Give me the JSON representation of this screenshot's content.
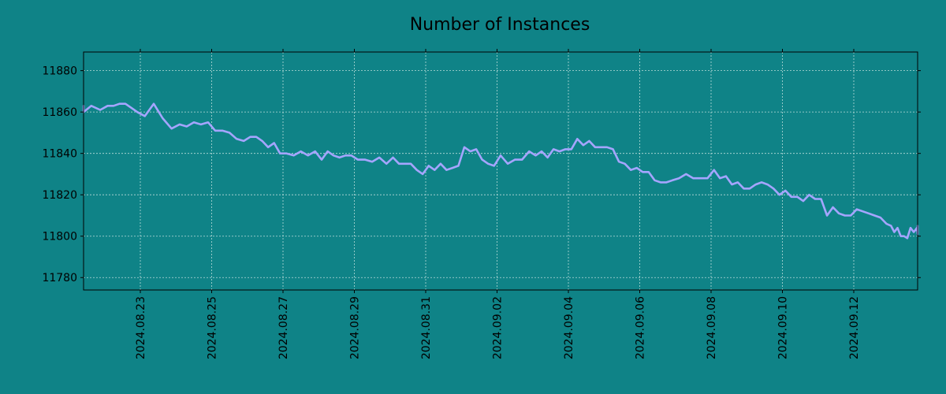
{
  "chart_data": {
    "type": "line",
    "title": "Number of Instances",
    "xlabel": "",
    "ylabel": "",
    "x_range": [
      "2024.08.21",
      "2024.09.13"
    ],
    "ylim": [
      11774,
      11889
    ],
    "y_ticks": [
      11780,
      11800,
      11820,
      11840,
      11860,
      11880
    ],
    "x_ticks": [
      "2024.08.23",
      "2024.08.25",
      "2024.08.27",
      "2024.08.29",
      "2024.08.31",
      "2024.09.02",
      "2024.09.04",
      "2024.09.06",
      "2024.09.08",
      "2024.09.10",
      "2024.09.12"
    ],
    "grid": true,
    "series": [
      {
        "color": "#a5a5ff",
        "points": [
          [
            "2024.08.21",
            11863
          ],
          [
            "2024.08.21",
            11860
          ],
          [
            "2024.08.21",
            11863
          ],
          [
            "2024.08.21",
            11861
          ],
          [
            "2024.08.22",
            11863
          ],
          [
            "2024.08.22",
            11863
          ],
          [
            "2024.08.22",
            11864
          ],
          [
            "2024.08.22",
            11864
          ],
          [
            "2024.08.22",
            11862
          ],
          [
            "2024.08.22",
            11860
          ],
          [
            "2024.08.23",
            11858
          ],
          [
            "2024.08.23",
            11864
          ],
          [
            "2024.08.23",
            11857
          ],
          [
            "2024.08.23",
            11852
          ],
          [
            "2024.08.24",
            11854
          ],
          [
            "2024.08.24",
            11853
          ],
          [
            "2024.08.24",
            11855
          ],
          [
            "2024.08.24",
            11854
          ],
          [
            "2024.08.24",
            11855
          ],
          [
            "2024.08.25",
            11851
          ],
          [
            "2024.08.25",
            11851
          ],
          [
            "2024.08.25",
            11850
          ],
          [
            "2024.08.25",
            11847
          ],
          [
            "2024.08.25",
            11846
          ],
          [
            "2024.08.26",
            11848
          ],
          [
            "2024.08.26",
            11848
          ],
          [
            "2024.08.26",
            11846
          ],
          [
            "2024.08.26",
            11843
          ],
          [
            "2024.08.26",
            11845
          ],
          [
            "2024.08.26",
            11840
          ],
          [
            "2024.08.27",
            11840
          ],
          [
            "2024.08.27",
            11839
          ],
          [
            "2024.08.27",
            11841
          ],
          [
            "2024.08.27",
            11839
          ],
          [
            "2024.08.27",
            11841
          ],
          [
            "2024.08.28",
            11837
          ],
          [
            "2024.08.28",
            11841
          ],
          [
            "2024.08.28",
            11839
          ],
          [
            "2024.08.28",
            11838
          ],
          [
            "2024.08.28",
            11839
          ],
          [
            "2024.08.28",
            11839
          ],
          [
            "2024.08.29",
            11837
          ],
          [
            "2024.08.29",
            11837
          ],
          [
            "2024.08.29",
            11836
          ],
          [
            "2024.08.29",
            11838
          ],
          [
            "2024.08.29",
            11835
          ],
          [
            "2024.08.30",
            11838
          ],
          [
            "2024.08.30",
            11835
          ],
          [
            "2024.08.30",
            11835
          ],
          [
            "2024.08.30",
            11835
          ],
          [
            "2024.08.30",
            11832
          ],
          [
            "2024.08.30",
            11830
          ],
          [
            "2024.08.31",
            11834
          ],
          [
            "2024.08.31",
            11832
          ],
          [
            "2024.08.31",
            11835
          ],
          [
            "2024.08.31",
            11832
          ],
          [
            "2024.08.31",
            11833
          ],
          [
            "2024.08.31",
            11834
          ],
          [
            "2024.09.01",
            11843
          ],
          [
            "2024.09.01",
            11841
          ],
          [
            "2024.09.01",
            11842
          ],
          [
            "2024.09.01",
            11837
          ],
          [
            "2024.09.01",
            11835
          ],
          [
            "2024.09.01",
            11834
          ],
          [
            "2024.09.02",
            11839
          ],
          [
            "2024.09.02",
            11835
          ],
          [
            "2024.09.02",
            11837
          ],
          [
            "2024.09.02",
            11837
          ],
          [
            "2024.09.02",
            11841
          ],
          [
            "2024.09.03",
            11839
          ],
          [
            "2024.09.03",
            11841
          ],
          [
            "2024.09.03",
            11838
          ],
          [
            "2024.09.03",
            11842
          ],
          [
            "2024.09.03",
            11841
          ],
          [
            "2024.09.03",
            11842
          ],
          [
            "2024.09.04",
            11842
          ],
          [
            "2024.09.04",
            11847
          ],
          [
            "2024.09.04",
            11844
          ],
          [
            "2024.09.04",
            11846
          ],
          [
            "2024.09.04",
            11843
          ],
          [
            "2024.09.04",
            11843
          ],
          [
            "2024.09.05",
            11843
          ],
          [
            "2024.09.05",
            11842
          ],
          [
            "2024.09.05",
            11836
          ],
          [
            "2024.09.05",
            11835
          ],
          [
            "2024.09.05",
            11832
          ],
          [
            "2024.09.05",
            11833
          ],
          [
            "2024.09.06",
            11831
          ],
          [
            "2024.09.06",
            11831
          ],
          [
            "2024.09.06",
            11827
          ],
          [
            "2024.09.06",
            11826
          ],
          [
            "2024.09.06",
            11826
          ],
          [
            "2024.09.06",
            11827
          ],
          [
            "2024.09.07",
            11828
          ],
          [
            "2024.09.07",
            11830
          ],
          [
            "2024.09.07",
            11828
          ],
          [
            "2024.09.07",
            11828
          ],
          [
            "2024.09.07",
            11828
          ],
          [
            "2024.09.08",
            11832
          ],
          [
            "2024.09.08",
            11828
          ],
          [
            "2024.09.08",
            11829
          ],
          [
            "2024.09.08",
            11825
          ],
          [
            "2024.09.08",
            11826
          ],
          [
            "2024.09.08",
            11823
          ],
          [
            "2024.09.09",
            11823
          ],
          [
            "2024.09.09",
            11825
          ],
          [
            "2024.09.09",
            11826
          ],
          [
            "2024.09.09",
            11825
          ],
          [
            "2024.09.09",
            11823
          ],
          [
            "2024.09.09",
            11820
          ],
          [
            "2024.09.10",
            11822
          ],
          [
            "2024.09.10",
            11819
          ],
          [
            "2024.09.10",
            11819
          ],
          [
            "2024.09.10",
            11817
          ],
          [
            "2024.09.10",
            11820
          ],
          [
            "2024.09.10",
            11818
          ],
          [
            "2024.09.11",
            11818
          ],
          [
            "2024.09.11",
            11810
          ],
          [
            "2024.09.11",
            11814
          ],
          [
            "2024.09.11",
            11811
          ],
          [
            "2024.09.11",
            11810
          ],
          [
            "2024.09.11",
            11810
          ],
          [
            "2024.09.12",
            11813
          ],
          [
            "2024.09.12",
            11812
          ],
          [
            "2024.09.12",
            11811
          ],
          [
            "2024.09.12",
            11810
          ],
          [
            "2024.09.12",
            11809
          ],
          [
            "2024.09.12",
            11806
          ],
          [
            "2024.09.13",
            11805
          ],
          [
            "2024.09.13",
            11802
          ],
          [
            "2024.09.13",
            11804
          ],
          [
            "2024.09.13",
            11800
          ],
          [
            "2024.09.13",
            11800
          ],
          [
            "2024.09.13",
            11799
          ],
          [
            "2024.09.13",
            11804
          ],
          [
            "2024.09.13",
            11802
          ],
          [
            "2024.09.13",
            11804
          ],
          [
            "2024.09.13",
            11801
          ],
          [
            "2024.09.13",
            11805
          ]
        ]
      }
    ]
  }
}
